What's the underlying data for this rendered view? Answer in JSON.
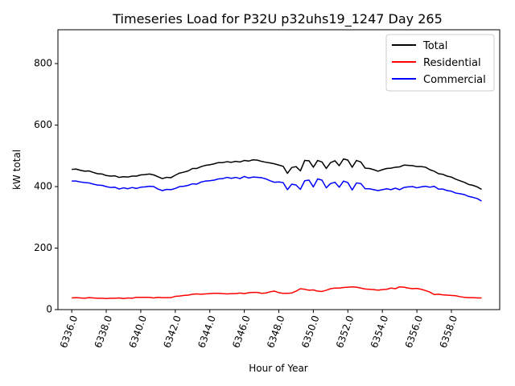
{
  "chart_data": {
    "type": "line",
    "title": "Timeseries Load for P32U p32uhs19_1247  Day 265",
    "xlabel": "Hour of Year",
    "ylabel": "kW total",
    "xlim": [
      6335.2,
      6360.8
    ],
    "ylim": [
      0,
      910
    ],
    "xticks": [
      6336,
      6338,
      6340,
      6342,
      6344,
      6346,
      6348,
      6350,
      6352,
      6354,
      6356,
      6358
    ],
    "xtick_labels": [
      "6336.0",
      "6338.0",
      "6340.0",
      "6342.0",
      "6344.0",
      "6346.0",
      "6348.0",
      "6350.0",
      "6352.0",
      "6354.0",
      "6356.0",
      "6358.0"
    ],
    "yticks": [
      0,
      200,
      400,
      600,
      800
    ],
    "ytick_labels": [
      "0",
      "200",
      "400",
      "600",
      "800"
    ],
    "grid": false,
    "legend_position": "top-right",
    "x": [
      6336.0,
      6336.25,
      6336.5,
      6336.75,
      6337.0,
      6337.25,
      6337.5,
      6337.75,
      6338.0,
      6338.25,
      6338.5,
      6338.75,
      6339.0,
      6339.25,
      6339.5,
      6339.75,
      6340.0,
      6340.25,
      6340.5,
      6340.75,
      6341.0,
      6341.25,
      6341.5,
      6341.75,
      6342.0,
      6342.25,
      6342.5,
      6342.75,
      6343.0,
      6343.25,
      6343.5,
      6343.75,
      6344.0,
      6344.25,
      6344.5,
      6344.75,
      6345.0,
      6345.25,
      6345.5,
      6345.75,
      6346.0,
      6346.25,
      6346.5,
      6346.75,
      6347.0,
      6347.25,
      6347.5,
      6347.75,
      6348.0,
      6348.25,
      6348.5,
      6348.75,
      6349.0,
      6349.25,
      6349.5,
      6349.75,
      6350.0,
      6350.25,
      6350.5,
      6350.75,
      6351.0,
      6351.25,
      6351.5,
      6351.75,
      6352.0,
      6352.25,
      6352.5,
      6352.75,
      6353.0,
      6353.25,
      6353.5,
      6353.75,
      6354.0,
      6354.25,
      6354.5,
      6354.75,
      6355.0,
      6355.25,
      6355.5,
      6355.75,
      6356.0,
      6356.25,
      6356.5,
      6356.75,
      6357.0,
      6357.25,
      6357.5,
      6357.75,
      6358.0,
      6358.25,
      6358.5,
      6358.75,
      6359.0,
      6359.25,
      6359.5,
      6359.75
    ],
    "series": [
      {
        "name": "Total",
        "color": "#000000",
        "values": [
          456,
          457,
          453,
          450,
          451,
          446,
          442,
          441,
          436,
          434,
          435,
          430,
          432,
          431,
          434,
          434,
          438,
          439,
          441,
          438,
          432,
          426,
          430,
          429,
          437,
          444,
          447,
          451,
          459,
          459,
          465,
          469,
          471,
          474,
          478,
          478,
          481,
          479,
          482,
          480,
          485,
          483,
          487,
          486,
          482,
          479,
          477,
          474,
          470,
          466,
          443,
          462,
          465,
          451,
          485,
          484,
          463,
          485,
          480,
          459,
          478,
          484,
          468,
          490,
          486,
          463,
          485,
          480,
          460,
          459,
          455,
          450,
          455,
          459,
          460,
          463,
          464,
          470,
          469,
          468,
          465,
          465,
          463,
          455,
          450,
          442,
          440,
          434,
          431,
          424,
          419,
          414,
          407,
          404,
          399,
          391
        ]
      },
      {
        "name": "Residential",
        "color": "#ff0000",
        "values": [
          38,
          39,
          38,
          37,
          39,
          38,
          37,
          37,
          36,
          37,
          37,
          38,
          36,
          38,
          37,
          40,
          40,
          40,
          40,
          38,
          40,
          39,
          39,
          39,
          43,
          44,
          46,
          47,
          50,
          51,
          50,
          51,
          52,
          53,
          53,
          52,
          51,
          52,
          52,
          54,
          52,
          55,
          56,
          56,
          53,
          54,
          58,
          60,
          55,
          53,
          53,
          54,
          60,
          68,
          66,
          63,
          64,
          60,
          59,
          63,
          68,
          70,
          70,
          72,
          73,
          74,
          73,
          70,
          67,
          66,
          65,
          63,
          65,
          66,
          70,
          68,
          74,
          73,
          70,
          68,
          69,
          66,
          62,
          57,
          49,
          50,
          48,
          47,
          46,
          45,
          42,
          40,
          39,
          39,
          38,
          38
        ]
      },
      {
        "name": "Commercial",
        "color": "#0000ff",
        "values": [
          418,
          418,
          415,
          413,
          412,
          408,
          405,
          404,
          400,
          397,
          398,
          392,
          396,
          393,
          397,
          394,
          398,
          399,
          401,
          400,
          392,
          387,
          391,
          390,
          394,
          400,
          401,
          404,
          409,
          408,
          415,
          418,
          419,
          421,
          425,
          426,
          430,
          427,
          430,
          426,
          433,
          428,
          431,
          430,
          429,
          425,
          419,
          414,
          415,
          413,
          390,
          408,
          405,
          391,
          419,
          421,
          399,
          425,
          421,
          396,
          410,
          414,
          398,
          418,
          413,
          389,
          412,
          410,
          393,
          393,
          390,
          387,
          390,
          393,
          390,
          395,
          390,
          397,
          399,
          400,
          396,
          399,
          401,
          398,
          401,
          392,
          392,
          387,
          385,
          379,
          377,
          374,
          368,
          365,
          361,
          353
        ]
      }
    ]
  }
}
